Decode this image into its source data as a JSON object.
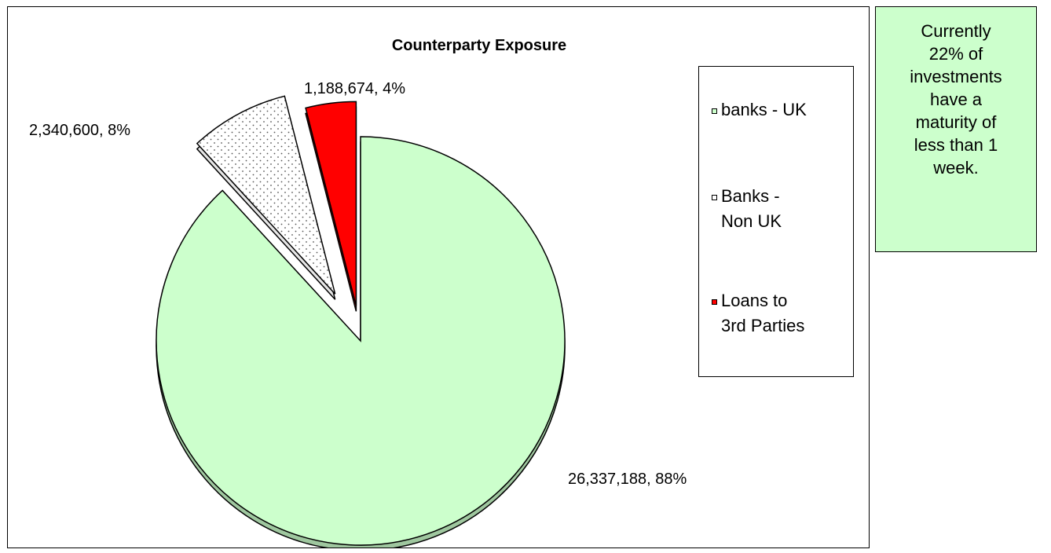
{
  "chart_data": {
    "type": "pie",
    "title": "Counterparty Exposure",
    "slices": [
      {
        "name": "banks - UK",
        "value": 26337188,
        "percent": 88,
        "label": "26,337,188, 88%",
        "color": "#ccffcc",
        "pattern": "solid"
      },
      {
        "name": "Banks - Non UK",
        "value": 2340600,
        "percent": 8,
        "label": "2,340,600, 8%",
        "color": "#ffffff",
        "pattern": "dotted"
      },
      {
        "name": "Loans to 3rd Parties",
        "value": 1188674,
        "percent": 4,
        "label": "1,188,674, 4%",
        "color": "#ff0000",
        "pattern": "solid"
      }
    ],
    "exploded": true,
    "legend_position": "right"
  },
  "legend": {
    "items": [
      {
        "line1": "banks - UK",
        "line2": "",
        "color": "#ccffcc"
      },
      {
        "line1": "Banks -",
        "line2": "Non UK",
        "color": "#ffffff"
      },
      {
        "line1": "Loans to",
        "line2": "3rd Parties",
        "color": "#ff0000"
      }
    ]
  },
  "note": {
    "lines": [
      "Currently",
      "22% of",
      "investments",
      "have a",
      "maturity of",
      "less than 1",
      "week."
    ],
    "background": "#ccffcc"
  }
}
